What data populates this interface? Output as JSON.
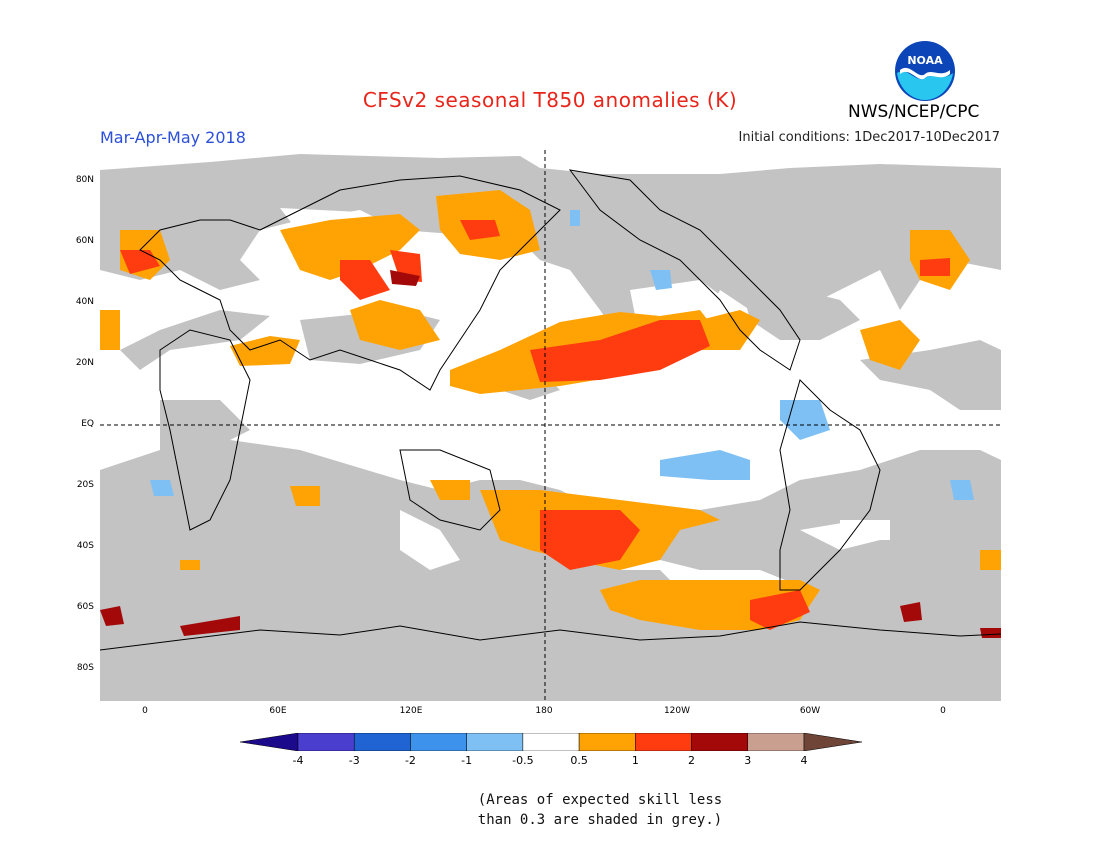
{
  "title": "CFSv2 seasonal T850 anomalies (K)",
  "season": "Mar-Apr-May 2018",
  "initial_conditions": "Initial conditions: 1Dec2017-10Dec2017",
  "agency": "NWS/NCEP/CPC",
  "logo_text": "NOAA",
  "lat_ticks": [
    "80N",
    "60N",
    "40N",
    "20N",
    "EQ",
    "20S",
    "40S",
    "60S",
    "80S"
  ],
  "lon_ticks": [
    "0",
    "60E",
    "120E",
    "180",
    "120W",
    "60W",
    "0"
  ],
  "legend": {
    "labels": [
      "-4",
      "-3",
      "-2",
      "-1",
      "-0.5",
      "0.5",
      "1",
      "2",
      "3",
      "4"
    ],
    "colors": [
      "#1c0a8c",
      "#4a3ecf",
      "#1f64d2",
      "#3d92ec",
      "#7ec0f4",
      "#ffffff",
      "#ffa305",
      "#ff3b10",
      "#a30909",
      "#c9a090",
      "#6e4536"
    ]
  },
  "note_line1": "(Areas of expected skill less",
  "note_line2": "than 0.3 are shaded in grey.)",
  "colors": {
    "title": "#e8251b",
    "season": "#2b4fd8",
    "skill_mask": "#c3c3c3",
    "background": "#ffffff"
  }
}
